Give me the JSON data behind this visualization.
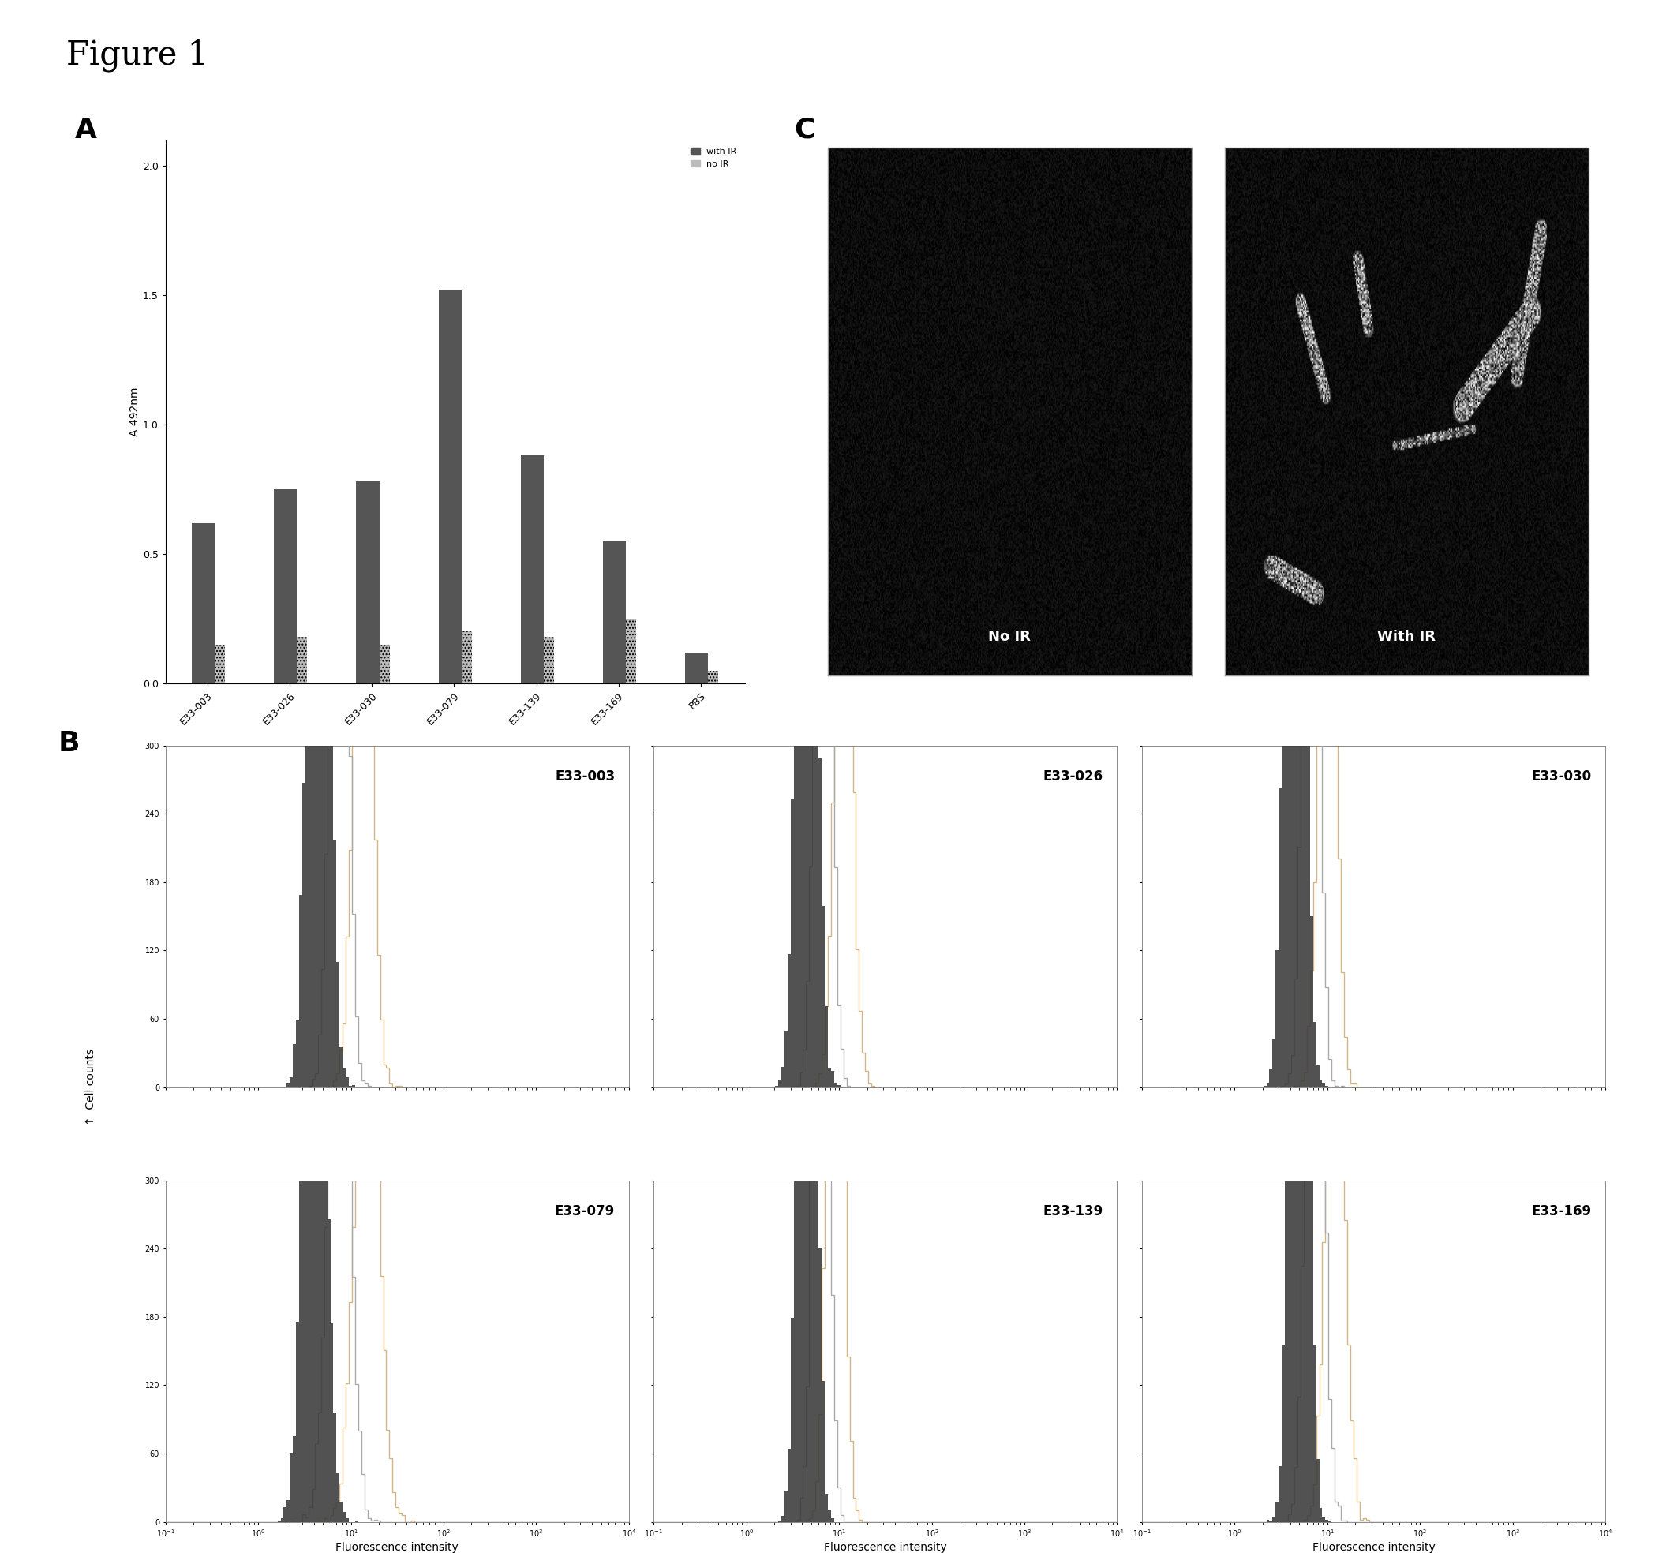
{
  "figure_title": "Figure 1",
  "panel_A": {
    "categories": [
      "E33-003",
      "E33-026",
      "E33-030",
      "E33-079",
      "E33-139",
      "E33-169",
      "PBS"
    ],
    "with_IR": [
      0.62,
      0.75,
      0.78,
      1.52,
      0.88,
      0.55,
      0.12
    ],
    "no_IR": [
      0.15,
      0.18,
      0.15,
      0.2,
      0.18,
      0.25,
      0.05
    ],
    "ylabel": "A 492nm",
    "yticks": [
      0,
      0.5,
      1,
      1.5,
      2
    ],
    "ylim": [
      0,
      2.1
    ],
    "color_with_IR": "#555555",
    "color_no_IR": "#bbbbbb",
    "legend_with": "with IR",
    "legend_no": "no IR"
  },
  "panel_B": {
    "labels": [
      "E33-003",
      "E33-026",
      "E33-030",
      "E33-079",
      "E33-139",
      "E33-169"
    ],
    "ylabel": "Cell counts",
    "xlabel": "Fluorescence intensity",
    "yticks": [
      0,
      60,
      120,
      180,
      240,
      300
    ],
    "ylim": [
      0,
      300
    ],
    "xlog": true
  },
  "panel_C": {
    "label_left": "No IR",
    "label_right": "With IR"
  },
  "background_color": "#ffffff"
}
